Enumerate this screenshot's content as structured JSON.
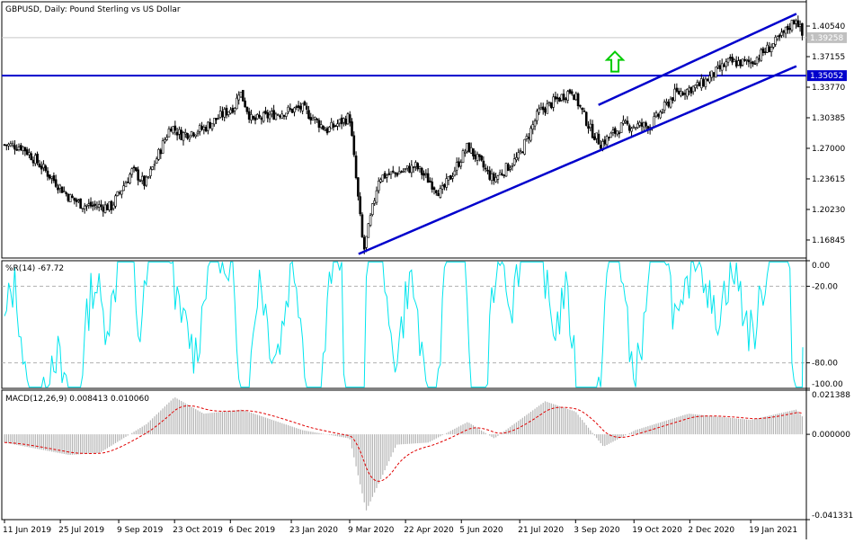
{
  "header": {
    "price_title": "GBPUSD, Daily:  Pound Sterling vs US Dollar",
    "wpr_title": "%R(14) -67.72",
    "macd_title": "MACD(12,26,9) 0.008413 0.010060"
  },
  "colors": {
    "candle": "#000000",
    "channel_line": "#0000cc",
    "horizontal_line": "#0000cc",
    "arrow": "#00cc00",
    "wpr_line": "#00e5ee",
    "macd_hist": "#b4b4b4",
    "macd_signal": "#e00000",
    "price_label_bg": "#0000cc",
    "current_price_bg": "#c0c0c0",
    "grid_dash": "#b0b0b0"
  },
  "icons": {
    "arrow": "up-arrow-icon"
  },
  "chart_data": [
    {
      "type": "candlestick",
      "panel": "price",
      "title": "GBPUSD, Daily:  Pound Sterling vs US Dollar",
      "y_ticks": [
        "1.40540",
        "1.37155",
        "1.33770",
        "1.30385",
        "1.27000",
        "1.23615",
        "1.20230",
        "1.16845"
      ],
      "ylim": [
        1.1485,
        1.4323
      ],
      "current_price": "1.39258",
      "horizontal_level": "1.35052",
      "x_ticks": [
        "11 Jun 2019",
        "25 Jul 2019",
        "9 Sep 2019",
        "23 Oct 2019",
        "6 Dec 2019",
        "23 Jan 2020",
        "9 Mar 2020",
        "22 Apr 2020",
        "5 Jun 2020",
        "21 Jul 2020",
        "3 Sep 2020",
        "19 Oct 2020",
        "2 Dec 2020",
        "19 Jan 2021"
      ],
      "price_path": [
        [
          "11 Jun 2019",
          1.274
        ],
        [
          "25 Jun 2019",
          1.272
        ],
        [
          "10 Jul 2019",
          1.25
        ],
        [
          "1 Aug 2019",
          1.216
        ],
        [
          "12 Aug 2019",
          1.207
        ],
        [
          "3 Sep 2019",
          1.205
        ],
        [
          "20 Sep 2019",
          1.246
        ],
        [
          "30 Sep 2019",
          1.23
        ],
        [
          "20 Oct 2019",
          1.295
        ],
        [
          "28 Oct 2019",
          1.285
        ],
        [
          "15 Nov 2019",
          1.292
        ],
        [
          "10 Dec 2019",
          1.318
        ],
        [
          "13 Dec 2019",
          1.335
        ],
        [
          "23 Dec 2019",
          1.3
        ],
        [
          "10 Jan 2020",
          1.308
        ],
        [
          "31 Jan 2020",
          1.315
        ],
        [
          "20 Feb 2020",
          1.29
        ],
        [
          "9 Mar 2020",
          1.305
        ],
        [
          "20 Mar 2020",
          1.155
        ],
        [
          "1 Apr 2020",
          1.238
        ],
        [
          "20 Apr 2020",
          1.245
        ],
        [
          "30 Apr 2020",
          1.25
        ],
        [
          "20 May 2020",
          1.22
        ],
        [
          "10 Jun 2020",
          1.272
        ],
        [
          "30 Jun 2020",
          1.235
        ],
        [
          "20 Jul 2020",
          1.26
        ],
        [
          "5 Aug 2020",
          1.31
        ],
        [
          "31 Aug 2020",
          1.335
        ],
        [
          "15 Sep 2020",
          1.29
        ],
        [
          "23 Sep 2020",
          1.275
        ],
        [
          "10 Oct 2020",
          1.295
        ],
        [
          "1 Nov 2020",
          1.295
        ],
        [
          "20 Nov 2020",
          1.33
        ],
        [
          "10 Dec 2020",
          1.34
        ],
        [
          "1 Jan 2021",
          1.365
        ],
        [
          "19 Jan 2021",
          1.365
        ],
        [
          "10 Feb 2021",
          1.39
        ],
        [
          "24 Feb 2021",
          1.415
        ],
        [
          "1 Mar 2021",
          1.393
        ]
      ],
      "trend_lines": [
        {
          "name": "lower",
          "from": [
            "16 Mar 2020",
            1.153
          ],
          "to": [
            "24 Feb 2021",
            1.361
          ]
        },
        {
          "name": "upper",
          "from": [
            "21 Sep 2020",
            1.318
          ],
          "to": [
            "24 Feb 2021",
            1.419
          ]
        }
      ],
      "arrow": {
        "date": "4 Oct 2020",
        "price": 1.365,
        "direction": "up"
      }
    },
    {
      "type": "line",
      "panel": "wpr",
      "title": "%R(14) -67.72",
      "indicator": "%R(14)",
      "last_value": -67.72,
      "y_ticks": [
        "0.00",
        "-20.00",
        "-80.00",
        "-100.00"
      ],
      "levels": [
        -20,
        -80
      ],
      "ylim": [
        -100,
        0
      ]
    },
    {
      "type": "histogram+line",
      "panel": "macd",
      "title": "MACD(12,26,9) 0.008413 0.010060",
      "indicator": "MACD(12,26,9)",
      "macd_value": 0.008413,
      "signal_value": 0.01006,
      "y_ticks": [
        "0.021388",
        "0.000000",
        "-0.041331"
      ],
      "ylim": [
        -0.041331,
        0.021388
      ],
      "path": [
        [
          "11 Jun 2019",
          -0.004
        ],
        [
          "1 Aug 2019",
          -0.01
        ],
        [
          "25 Aug 2019",
          -0.009
        ],
        [
          "1 Oct 2019",
          0.005
        ],
        [
          "23 Oct 2019",
          0.018
        ],
        [
          "15 Nov 2019",
          0.01
        ],
        [
          "15 Dec 2019",
          0.012
        ],
        [
          "1 Feb 2020",
          0.002
        ],
        [
          "9 Mar 2020",
          -0.002
        ],
        [
          "22 Mar 2020",
          -0.037
        ],
        [
          "15 Apr 2020",
          -0.005
        ],
        [
          "10 May 2020",
          -0.004
        ],
        [
          "10 Jun 2020",
          0.006
        ],
        [
          "1 Jul 2020",
          -0.002
        ],
        [
          "10 Aug 2020",
          0.016
        ],
        [
          "3 Sep 2020",
          0.011
        ],
        [
          "25 Sep 2020",
          -0.006
        ],
        [
          "20 Oct 2020",
          0.002
        ],
        [
          "1 Dec 2020",
          0.01
        ],
        [
          "19 Jan 2021",
          0.007
        ],
        [
          "24 Feb 2021",
          0.012
        ],
        [
          "1 Mar 2021",
          0.0084
        ]
      ]
    }
  ]
}
